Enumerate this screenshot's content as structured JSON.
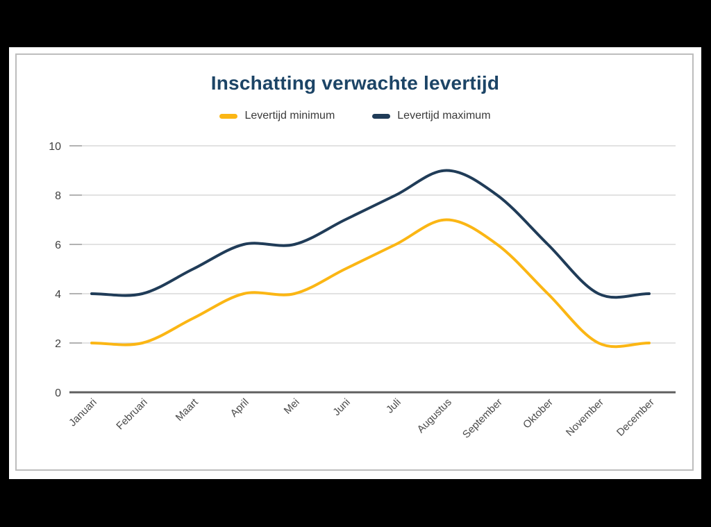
{
  "page": {
    "background_color": "#000000",
    "card_background_color": "#ffffff",
    "frame_border_color": "#bdbdbd"
  },
  "chart_data": {
    "type": "line",
    "title": "Inschatting verwachte levertijd",
    "title_color": "#1c4466",
    "categories": [
      "Januari",
      "Februari",
      "Maart",
      "April",
      "Mei",
      "Juni",
      "Juli",
      "Augustus",
      "September",
      "Oktober",
      "November",
      "December"
    ],
    "series": [
      {
        "name": "Levertijd minimum",
        "color": "#FBB614",
        "values": [
          2,
          2,
          3,
          4,
          4,
          5,
          6,
          7,
          6,
          4,
          2,
          2
        ]
      },
      {
        "name": "Levertijd maximum",
        "color": "#203C58",
        "values": [
          4,
          4,
          5,
          6,
          6,
          7,
          8,
          9,
          8,
          6,
          4,
          4
        ]
      }
    ],
    "xlabel": "",
    "ylabel": "",
    "ylim": [
      0,
      10
    ],
    "yticks": [
      0,
      2,
      4,
      6,
      8,
      10
    ],
    "grid": true,
    "smooth": true,
    "legend_position": "top",
    "gridline_color": "#d9d9d9",
    "tick_color": "#9e9e9e",
    "axis_line_color": "#5f5f5f",
    "y_label_color": "#404040",
    "x_label_color": "#4a4a4a",
    "line_width": 4
  }
}
